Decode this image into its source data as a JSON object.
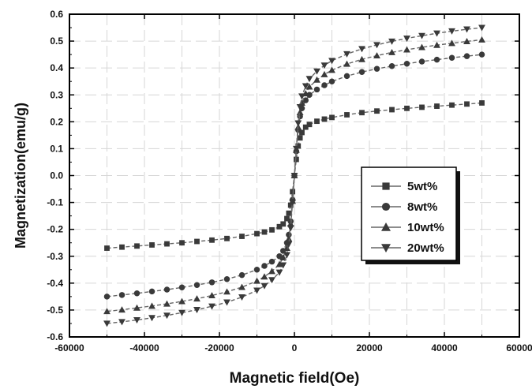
{
  "chart_data": {
    "type": "scatter",
    "xlabel": "Magnetic field(Oe)",
    "ylabel": "Magnetization(emu/g)",
    "xlim": [
      -60000,
      60000
    ],
    "ylim": [
      -0.6,
      0.6
    ],
    "xticks": [
      "-60000",
      "-40000",
      "-20000",
      "0",
      "20000",
      "40000",
      "60000"
    ],
    "yticks": [
      "0.6",
      "0.5",
      "0.4",
      "0.3",
      "0.2",
      "0.1",
      "0.0",
      "-0.1",
      "-0.2",
      "-0.3",
      "-0.4",
      "-0.5",
      "-0.6"
    ],
    "grid": true,
    "legend_position": "center-right",
    "x": [
      -50000,
      -46000,
      -42000,
      -38000,
      -34000,
      -30000,
      -26000,
      -22000,
      -18000,
      -14000,
      -10000,
      -8000,
      -6000,
      -4000,
      -3000,
      -2000,
      -1500,
      -1000,
      -500,
      0,
      500,
      1000,
      1500,
      2000,
      3000,
      4000,
      6000,
      8000,
      10000,
      14000,
      18000,
      22000,
      26000,
      30000,
      34000,
      38000,
      42000,
      46000,
      50000
    ],
    "series": [
      {
        "name": "5wt%",
        "marker": "square",
        "y": [
          -0.27,
          -0.266,
          -0.262,
          -0.258,
          -0.254,
          -0.25,
          -0.245,
          -0.24,
          -0.234,
          -0.226,
          -0.216,
          -0.21,
          -0.202,
          -0.19,
          -0.18,
          -0.16,
          -0.14,
          -0.11,
          -0.06,
          0.0,
          0.06,
          0.11,
          0.14,
          0.16,
          0.18,
          0.19,
          0.202,
          0.21,
          0.216,
          0.226,
          0.234,
          0.24,
          0.245,
          0.25,
          0.254,
          0.258,
          0.262,
          0.266,
          0.27
        ]
      },
      {
        "name": "8wt%",
        "marker": "circle",
        "y": [
          -0.45,
          -0.444,
          -0.438,
          -0.431,
          -0.424,
          -0.416,
          -0.407,
          -0.397,
          -0.385,
          -0.37,
          -0.35,
          -0.336,
          -0.32,
          -0.3,
          -0.28,
          -0.25,
          -0.22,
          -0.17,
          -0.09,
          0.0,
          0.09,
          0.17,
          0.22,
          0.25,
          0.28,
          0.3,
          0.32,
          0.336,
          0.35,
          0.37,
          0.385,
          0.397,
          0.407,
          0.416,
          0.424,
          0.431,
          0.438,
          0.444,
          0.45
        ]
      },
      {
        "name": "10wt%",
        "marker": "triangle-up",
        "y": [
          -0.505,
          -0.499,
          -0.492,
          -0.485,
          -0.477,
          -0.468,
          -0.458,
          -0.446,
          -0.432,
          -0.415,
          -0.392,
          -0.376,
          -0.356,
          -0.33,
          -0.305,
          -0.27,
          -0.235,
          -0.18,
          -0.095,
          0.0,
          0.095,
          0.18,
          0.235,
          0.27,
          0.305,
          0.33,
          0.356,
          0.376,
          0.392,
          0.415,
          0.432,
          0.446,
          0.458,
          0.468,
          0.477,
          0.485,
          0.492,
          0.499,
          0.505
        ]
      },
      {
        "name": "20wt%",
        "marker": "triangle-down",
        "y": [
          -0.55,
          -0.544,
          -0.537,
          -0.529,
          -0.52,
          -0.51,
          -0.499,
          -0.486,
          -0.471,
          -0.452,
          -0.427,
          -0.41,
          -0.388,
          -0.36,
          -0.333,
          -0.295,
          -0.255,
          -0.195,
          -0.1,
          0.0,
          0.1,
          0.195,
          0.255,
          0.295,
          0.333,
          0.36,
          0.388,
          0.41,
          0.427,
          0.452,
          0.471,
          0.486,
          0.499,
          0.51,
          0.52,
          0.529,
          0.537,
          0.544,
          0.55
        ]
      }
    ],
    "colors": {
      "markers": "#3a3a3a",
      "line": "#666666",
      "grid": "#d6d6d6",
      "axis": "#000000",
      "legend_shadow": "#111111"
    }
  }
}
